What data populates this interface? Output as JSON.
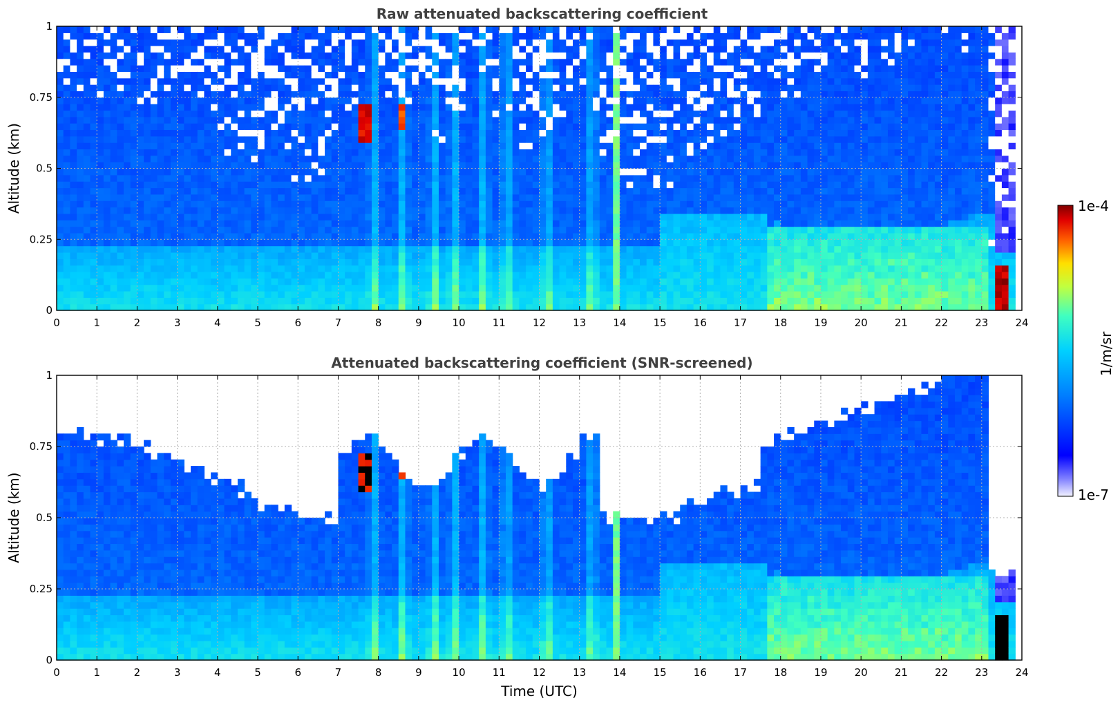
{
  "chart_data": [
    {
      "type": "heatmap",
      "title": "Raw attenuated backscattering coefficient",
      "xlabel": "",
      "ylabel": "Altitude (km)",
      "xlim": [
        0,
        24
      ],
      "ylim": [
        0,
        1
      ],
      "xticks": [
        "0",
        "1",
        "2",
        "3",
        "4",
        "5",
        "6",
        "7",
        "8",
        "9",
        "10",
        "11",
        "12",
        "13",
        "14",
        "15",
        "16",
        "17",
        "18",
        "19",
        "20",
        "21",
        "22",
        "23",
        "24"
      ],
      "yticks": [
        "0",
        "0.25",
        "0.5",
        "0.75",
        "1"
      ],
      "screened": false,
      "grid": true
    },
    {
      "type": "heatmap",
      "title": "Attenuated backscattering coefficient (SNR-screened)",
      "xlabel": "Time (UTC)",
      "ylabel": "Altitude (km)",
      "xlim": [
        0,
        24
      ],
      "ylim": [
        0,
        1
      ],
      "xticks": [
        "0",
        "1",
        "2",
        "3",
        "4",
        "5",
        "6",
        "7",
        "8",
        "9",
        "10",
        "11",
        "12",
        "13",
        "14",
        "15",
        "16",
        "17",
        "18",
        "19",
        "20",
        "21",
        "22",
        "23",
        "24"
      ],
      "yticks": [
        "0",
        "0.25",
        "0.5",
        "0.75",
        "1"
      ],
      "screened": true,
      "grid": true
    }
  ],
  "colorbar": {
    "label": "1/m/sr",
    "max_label": "1e-4",
    "min_label": "1e-7",
    "scale": "log",
    "colormap": "jet",
    "colors": [
      "#e8e8ff",
      "#0000ff",
      "#00c8ff",
      "#ffff00",
      "#ff0000",
      "#800000"
    ]
  }
}
